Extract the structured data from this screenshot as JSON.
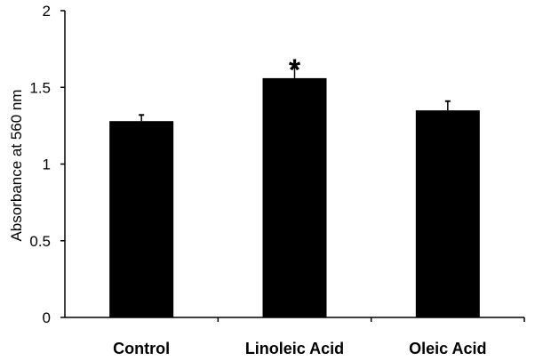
{
  "chart_data": {
    "type": "bar",
    "title": "",
    "xlabel": "",
    "ylabel": "Absorbance at 560 nm",
    "categories": [
      "Control",
      "Linoleic Acid",
      "Oleic Acid"
    ],
    "values": [
      1.28,
      1.56,
      1.35
    ],
    "errors": [
      0.04,
      0.07,
      0.06
    ],
    "annotations": [
      "",
      "*",
      ""
    ],
    "ylim": [
      0,
      2
    ],
    "yticks": [
      "0",
      "0.5",
      "1",
      "1.5",
      "2"
    ],
    "grid": false,
    "legend": "none",
    "bar_color": "#000000"
  }
}
